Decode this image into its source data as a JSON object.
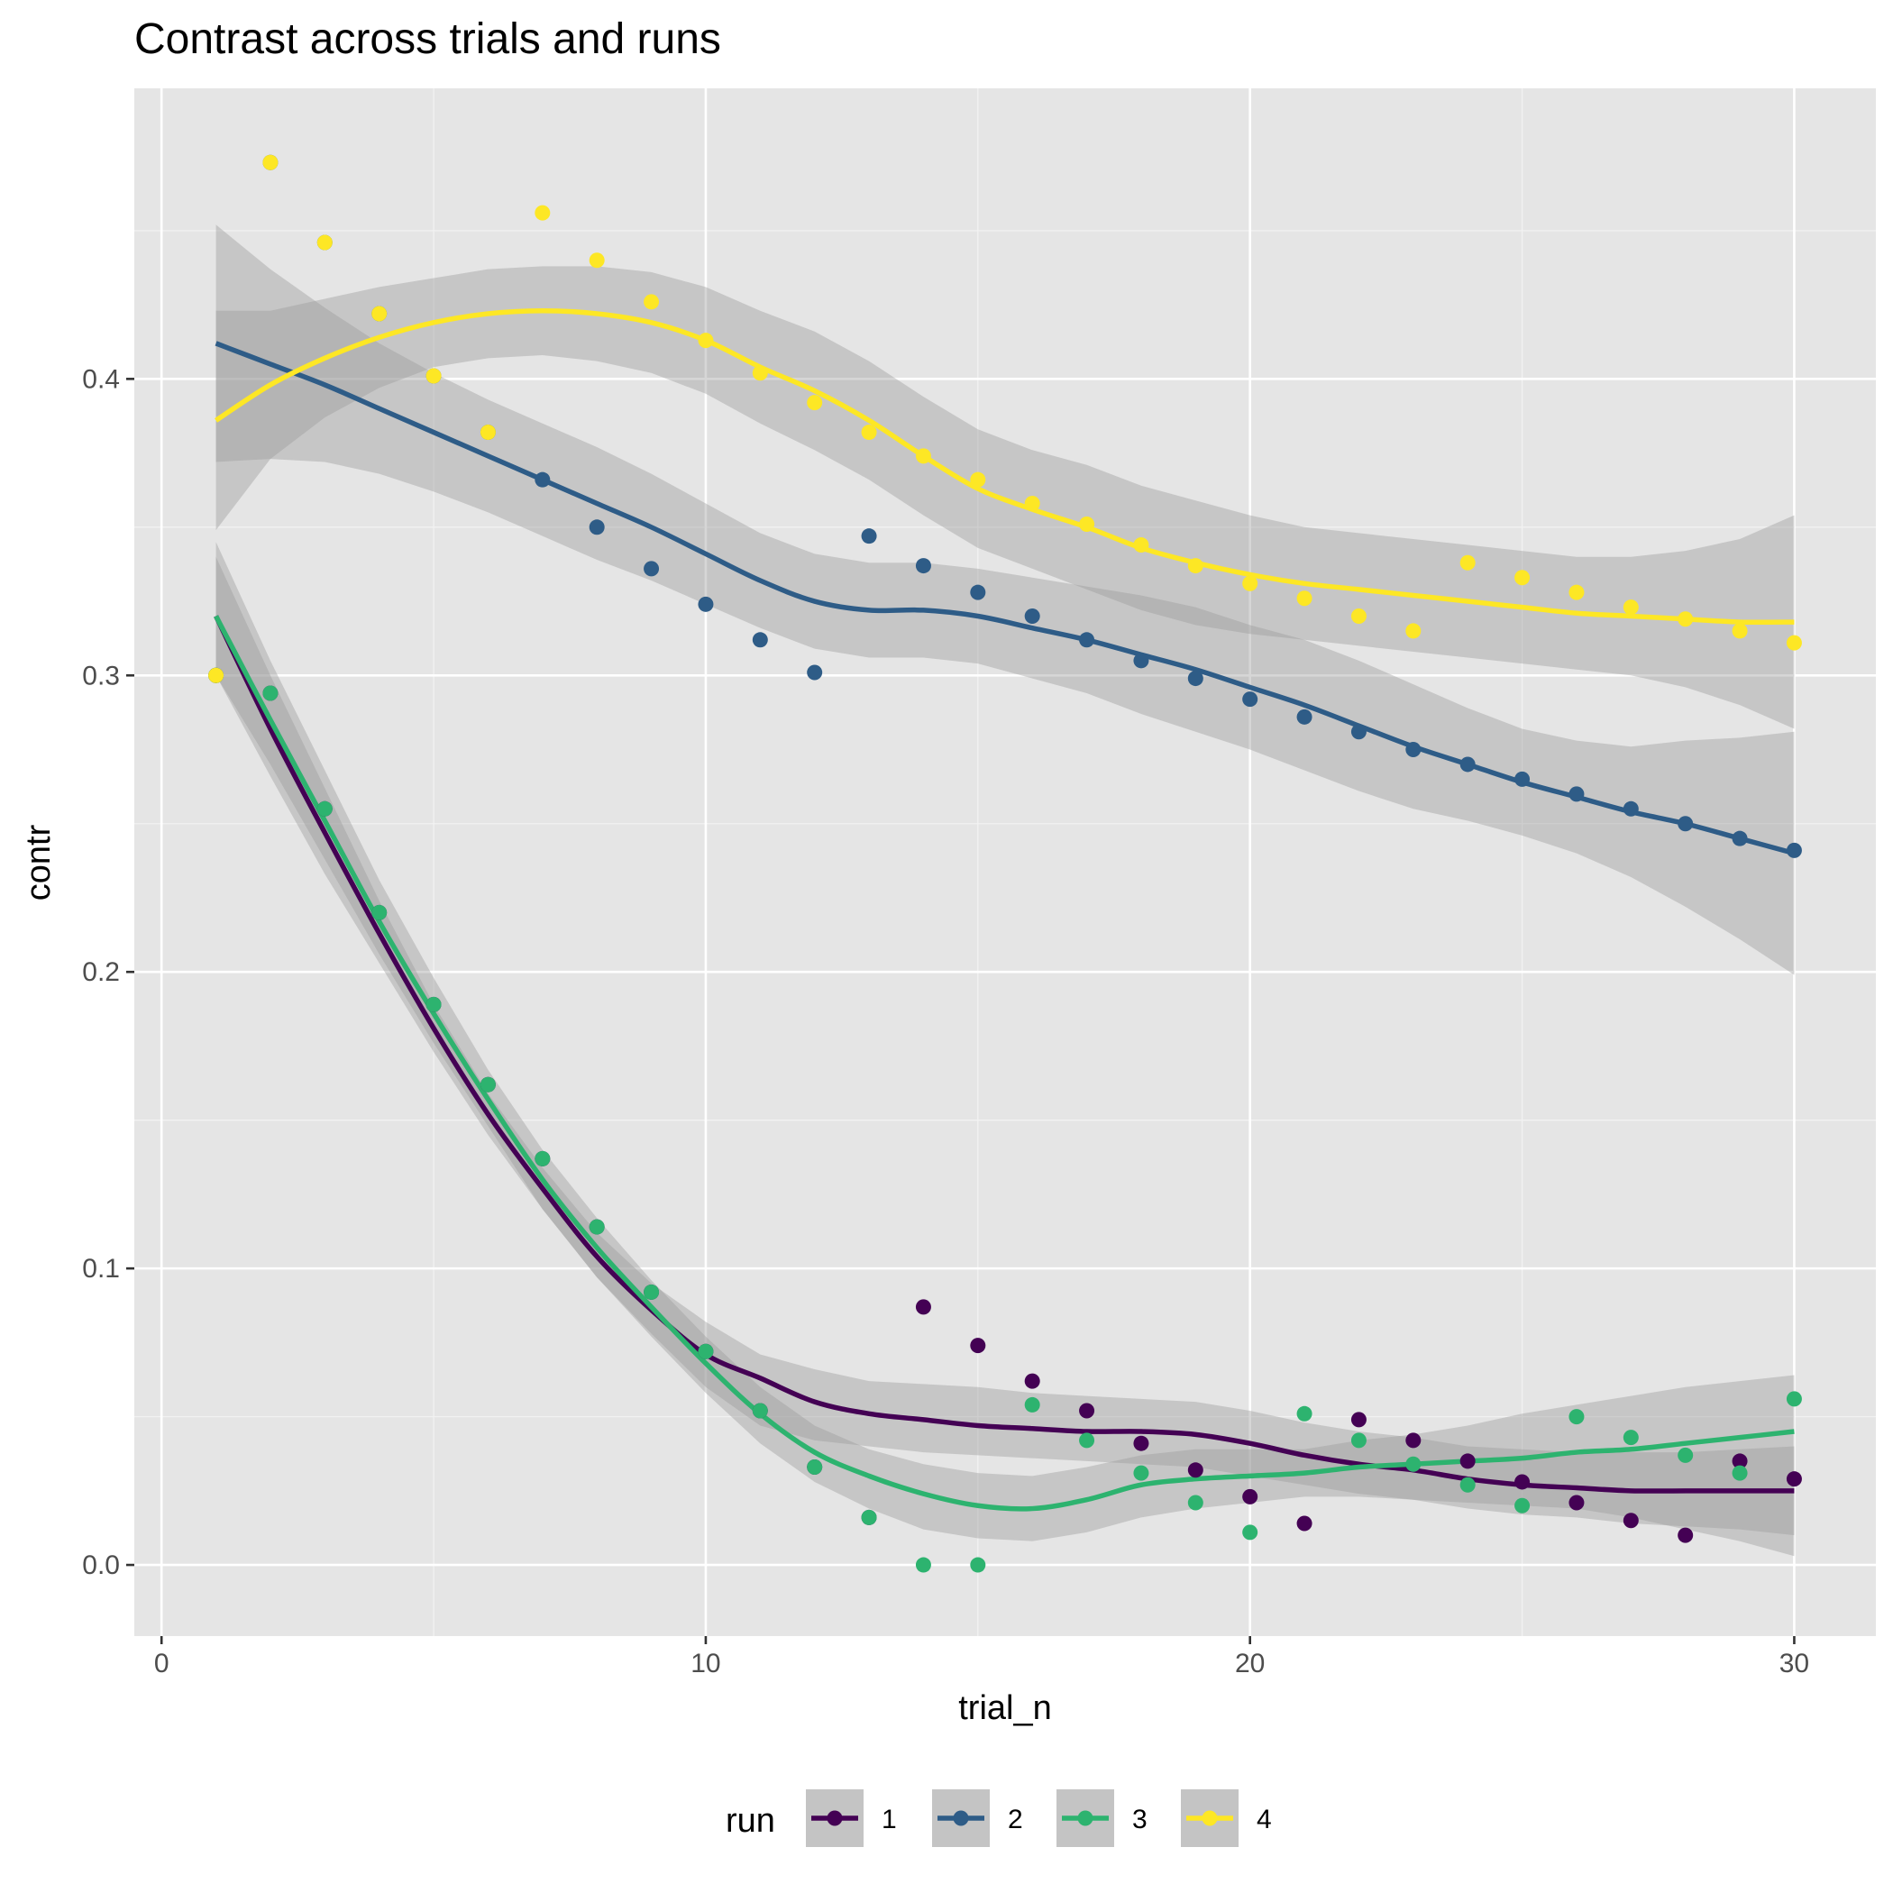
{
  "chart_data": {
    "type": "scatter",
    "title": "Contrast across trials and runs",
    "xlabel": "trial_n",
    "ylabel": "contr",
    "xlim": [
      -0.5,
      31.5
    ],
    "ylim": [
      -0.024,
      0.498
    ],
    "x_ticks": [
      0,
      10,
      20,
      30
    ],
    "x_tick_labels": [
      "0",
      "10",
      "20",
      "30"
    ],
    "y_ticks": [
      0.0,
      0.1,
      0.2,
      0.3,
      0.4
    ],
    "y_tick_labels": [
      "0.0",
      "0.1",
      "0.2",
      "0.3",
      "0.4"
    ],
    "grid": true,
    "background": "#e5e5e5",
    "legend": {
      "title": "run",
      "position": "bottom"
    },
    "series": [
      {
        "name": "1",
        "color": "#440154",
        "x": [
          1,
          2,
          3,
          4,
          5,
          6,
          7,
          8,
          9,
          10,
          11,
          12,
          13,
          14,
          15,
          16,
          17,
          18,
          19,
          20,
          21,
          22,
          23,
          24,
          25,
          26,
          27,
          28,
          29,
          30
        ],
        "y": [
          0.3,
          0.294,
          0.255,
          0.22,
          0.189,
          0.162,
          0.137,
          0.114,
          0.092,
          0.072,
          0.052,
          0.033,
          0.016,
          0.087,
          0.074,
          0.062,
          0.052,
          0.041,
          0.032,
          0.023,
          0.014,
          0.049,
          0.042,
          0.035,
          0.028,
          0.021,
          0.015,
          0.01,
          0.035,
          0.029
        ],
        "smooth_x": [
          1,
          2,
          3,
          4,
          5,
          6,
          7,
          8,
          9,
          10,
          11,
          12,
          13,
          14,
          15,
          16,
          17,
          18,
          19,
          20,
          21,
          22,
          23,
          24,
          25,
          26,
          27,
          28,
          29,
          30
        ],
        "smooth_y": [
          0.32,
          0.282,
          0.247,
          0.213,
          0.181,
          0.152,
          0.127,
          0.104,
          0.086,
          0.071,
          0.063,
          0.055,
          0.051,
          0.049,
          0.047,
          0.046,
          0.045,
          0.045,
          0.044,
          0.041,
          0.037,
          0.034,
          0.032,
          0.029,
          0.027,
          0.026,
          0.025,
          0.025,
          0.025,
          0.025
        ],
        "band_lo": [
          0.3,
          0.266,
          0.233,
          0.203,
          0.173,
          0.145,
          0.12,
          0.097,
          0.078,
          0.06,
          0.047,
          0.042,
          0.04,
          0.038,
          0.037,
          0.036,
          0.035,
          0.034,
          0.033,
          0.03,
          0.027,
          0.024,
          0.022,
          0.019,
          0.017,
          0.016,
          0.014,
          0.013,
          0.012,
          0.01
        ],
        "band_hi": [
          0.34,
          0.3,
          0.262,
          0.224,
          0.189,
          0.159,
          0.134,
          0.112,
          0.095,
          0.082,
          0.071,
          0.066,
          0.062,
          0.061,
          0.06,
          0.058,
          0.057,
          0.056,
          0.055,
          0.052,
          0.048,
          0.045,
          0.043,
          0.04,
          0.039,
          0.038,
          0.038,
          0.038,
          0.039,
          0.04
        ]
      },
      {
        "name": "2",
        "color": "#2e5c87",
        "x": [
          1,
          2,
          3,
          4,
          5,
          6,
          7,
          8,
          9,
          10,
          11,
          12,
          13,
          14,
          15,
          16,
          17,
          18,
          19,
          20,
          21,
          22,
          23,
          24,
          25,
          26,
          27,
          28,
          29,
          30
        ],
        "y": [
          0.3,
          0.473,
          0.446,
          0.422,
          0.401,
          0.382,
          0.366,
          0.35,
          0.336,
          0.324,
          0.312,
          0.301,
          0.347,
          0.337,
          0.328,
          0.32,
          0.312,
          0.305,
          0.299,
          0.292,
          0.286,
          0.281,
          0.275,
          0.27,
          0.265,
          0.26,
          0.255,
          0.25,
          0.245,
          0.241
        ],
        "smooth_x": [
          1,
          2,
          3,
          4,
          5,
          6,
          7,
          8,
          9,
          10,
          11,
          12,
          13,
          14,
          15,
          16,
          17,
          18,
          19,
          20,
          21,
          22,
          23,
          24,
          25,
          26,
          27,
          28,
          29,
          30
        ],
        "smooth_y": [
          0.412,
          0.405,
          0.398,
          0.39,
          0.382,
          0.374,
          0.366,
          0.358,
          0.35,
          0.341,
          0.332,
          0.325,
          0.322,
          0.322,
          0.32,
          0.316,
          0.312,
          0.307,
          0.302,
          0.296,
          0.29,
          0.283,
          0.276,
          0.27,
          0.264,
          0.259,
          0.254,
          0.25,
          0.245,
          0.24
        ],
        "band_lo": [
          0.372,
          0.373,
          0.372,
          0.368,
          0.362,
          0.355,
          0.347,
          0.339,
          0.332,
          0.324,
          0.316,
          0.309,
          0.306,
          0.306,
          0.304,
          0.299,
          0.294,
          0.287,
          0.281,
          0.275,
          0.268,
          0.261,
          0.255,
          0.251,
          0.246,
          0.24,
          0.232,
          0.222,
          0.211,
          0.199
        ],
        "band_hi": [
          0.452,
          0.437,
          0.424,
          0.412,
          0.402,
          0.393,
          0.385,
          0.377,
          0.368,
          0.358,
          0.348,
          0.341,
          0.338,
          0.338,
          0.336,
          0.333,
          0.33,
          0.327,
          0.323,
          0.317,
          0.312,
          0.305,
          0.297,
          0.289,
          0.282,
          0.278,
          0.276,
          0.278,
          0.279,
          0.281
        ]
      },
      {
        "name": "3",
        "color": "#2db36f",
        "x": [
          1,
          2,
          3,
          4,
          5,
          6,
          7,
          8,
          9,
          10,
          11,
          12,
          13,
          14,
          15,
          16,
          17,
          18,
          19,
          20,
          21,
          22,
          23,
          24,
          25,
          26,
          27,
          28,
          29,
          30
        ],
        "y": [
          0.3,
          0.294,
          0.255,
          0.22,
          0.189,
          0.162,
          0.137,
          0.114,
          0.092,
          0.072,
          0.052,
          0.033,
          0.016,
          0.0,
          0.0,
          0.054,
          0.042,
          0.031,
          0.021,
          0.011,
          0.051,
          0.042,
          0.034,
          0.027,
          0.02,
          0.05,
          0.043,
          0.037,
          0.031,
          0.056
        ],
        "smooth_x": [
          1,
          2,
          3,
          4,
          5,
          6,
          7,
          8,
          9,
          10,
          11,
          12,
          13,
          14,
          15,
          16,
          17,
          18,
          19,
          20,
          21,
          22,
          23,
          24,
          25,
          26,
          27,
          28,
          29,
          30
        ],
        "smooth_y": [
          0.32,
          0.285,
          0.251,
          0.217,
          0.186,
          0.157,
          0.13,
          0.107,
          0.087,
          0.068,
          0.051,
          0.038,
          0.03,
          0.024,
          0.02,
          0.019,
          0.022,
          0.027,
          0.029,
          0.03,
          0.031,
          0.033,
          0.034,
          0.035,
          0.036,
          0.038,
          0.039,
          0.041,
          0.043,
          0.045
        ],
        "band_lo": [
          0.3,
          0.27,
          0.238,
          0.206,
          0.176,
          0.148,
          0.12,
          0.097,
          0.077,
          0.058,
          0.041,
          0.028,
          0.019,
          0.012,
          0.009,
          0.008,
          0.011,
          0.016,
          0.019,
          0.021,
          0.023,
          0.023,
          0.022,
          0.021,
          0.02,
          0.019,
          0.016,
          0.012,
          0.008,
          0.003
        ],
        "band_hi": [
          0.345,
          0.305,
          0.268,
          0.231,
          0.198,
          0.167,
          0.14,
          0.117,
          0.096,
          0.077,
          0.06,
          0.047,
          0.039,
          0.034,
          0.031,
          0.03,
          0.033,
          0.037,
          0.039,
          0.039,
          0.039,
          0.042,
          0.044,
          0.047,
          0.051,
          0.054,
          0.057,
          0.06,
          0.062,
          0.064
        ]
      },
      {
        "name": "4",
        "color": "#fde725",
        "x": [
          1,
          2,
          3,
          4,
          5,
          6,
          7,
          8,
          9,
          10,
          11,
          12,
          13,
          14,
          15,
          16,
          17,
          18,
          19,
          20,
          21,
          22,
          23,
          24,
          25,
          26,
          27,
          28,
          29,
          30
        ],
        "y": [
          0.3,
          0.473,
          0.446,
          0.422,
          0.401,
          0.382,
          0.456,
          0.44,
          0.426,
          0.413,
          0.402,
          0.392,
          0.382,
          0.374,
          0.366,
          0.358,
          0.351,
          0.344,
          0.337,
          0.331,
          0.326,
          0.32,
          0.315,
          0.338,
          0.333,
          0.328,
          0.323,
          0.319,
          0.315,
          0.311
        ],
        "smooth_x": [
          1,
          2,
          3,
          4,
          5,
          6,
          7,
          8,
          9,
          10,
          11,
          12,
          13,
          14,
          15,
          16,
          17,
          18,
          19,
          20,
          21,
          22,
          23,
          24,
          25,
          26,
          27,
          28,
          29,
          30
        ],
        "smooth_y": [
          0.386,
          0.398,
          0.407,
          0.414,
          0.419,
          0.422,
          0.423,
          0.422,
          0.419,
          0.413,
          0.404,
          0.396,
          0.386,
          0.374,
          0.363,
          0.356,
          0.35,
          0.343,
          0.338,
          0.334,
          0.331,
          0.329,
          0.327,
          0.325,
          0.323,
          0.321,
          0.32,
          0.319,
          0.318,
          0.318
        ],
        "band_lo": [
          0.349,
          0.373,
          0.387,
          0.397,
          0.404,
          0.407,
          0.408,
          0.406,
          0.402,
          0.395,
          0.385,
          0.376,
          0.366,
          0.354,
          0.343,
          0.336,
          0.329,
          0.322,
          0.317,
          0.314,
          0.312,
          0.31,
          0.308,
          0.306,
          0.304,
          0.302,
          0.3,
          0.296,
          0.29,
          0.282
        ],
        "band_hi": [
          0.423,
          0.423,
          0.427,
          0.431,
          0.434,
          0.437,
          0.438,
          0.438,
          0.436,
          0.431,
          0.423,
          0.416,
          0.406,
          0.394,
          0.383,
          0.376,
          0.371,
          0.364,
          0.359,
          0.354,
          0.35,
          0.348,
          0.346,
          0.344,
          0.342,
          0.34,
          0.34,
          0.342,
          0.346,
          0.354
        ]
      }
    ]
  }
}
